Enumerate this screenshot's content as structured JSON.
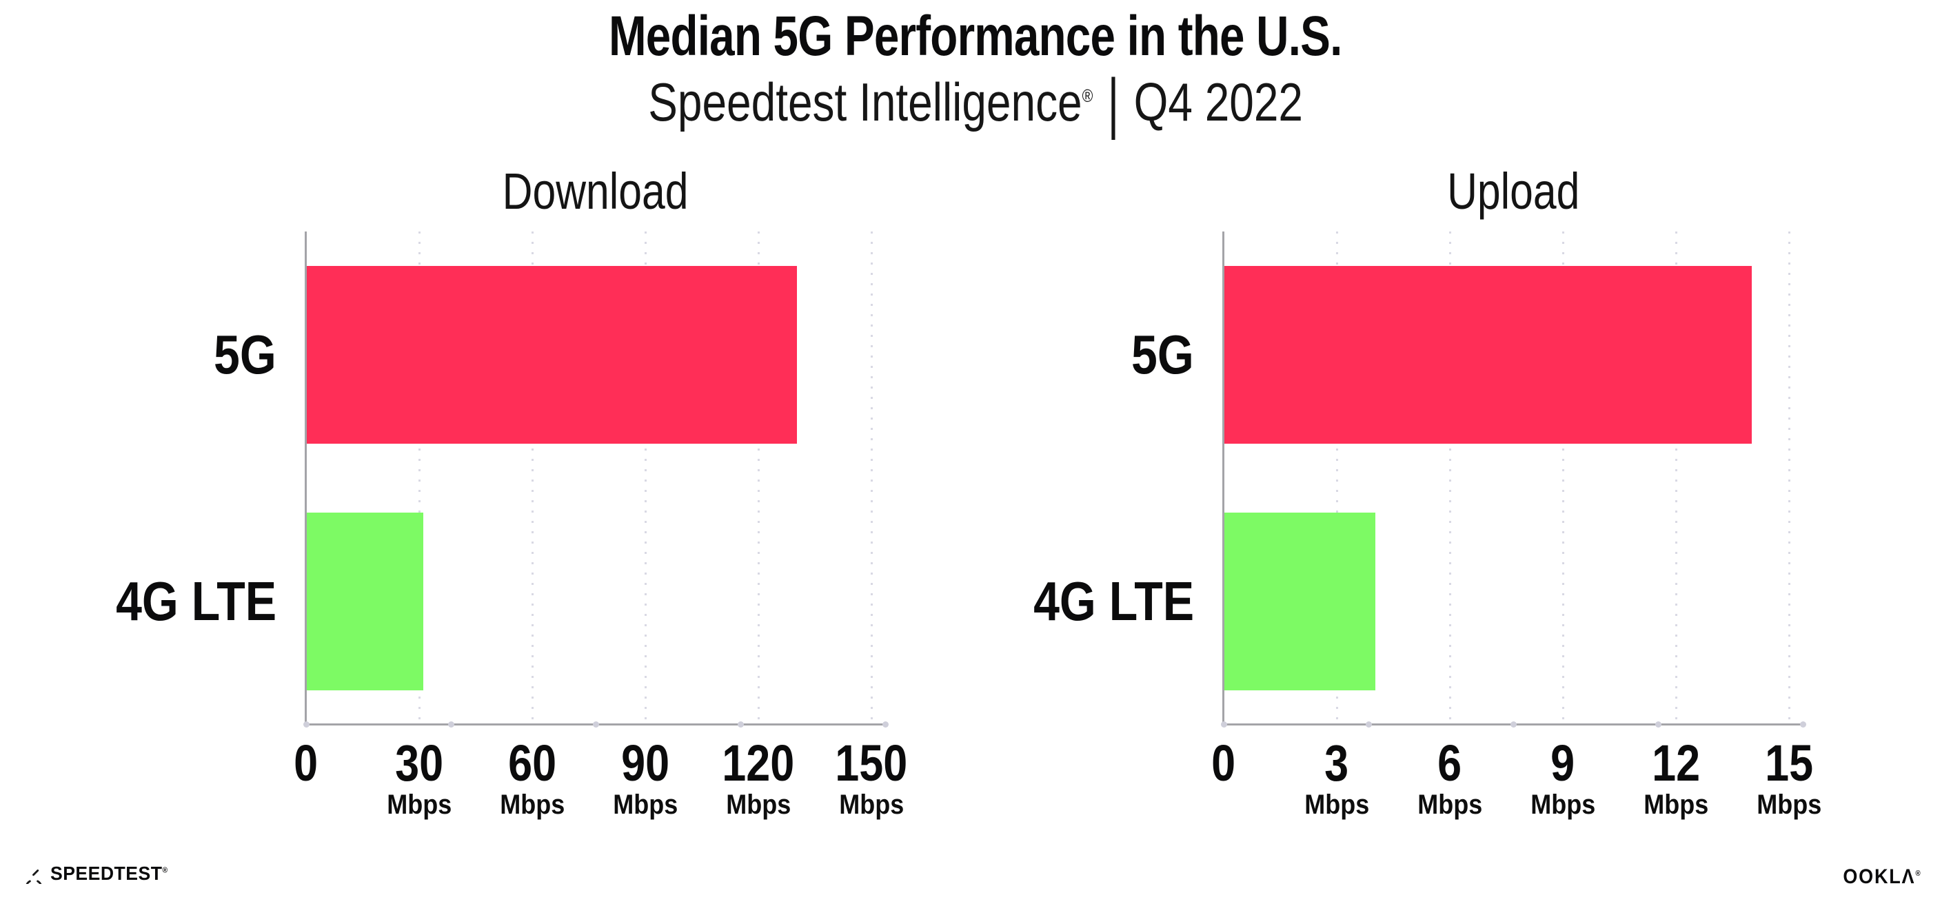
{
  "header": {
    "title": "Median 5G Performance in the U.S.",
    "subtitle_brand": "Speedtest Intelligence",
    "subtitle_reg": "®",
    "subtitle_sep": "|",
    "subtitle_period": "Q4 2022"
  },
  "chart_data": [
    {
      "type": "bar",
      "orientation": "horizontal",
      "title": "Download",
      "categories": [
        "5G",
        "4G LTE"
      ],
      "values": [
        130,
        31
      ],
      "unit": "Mbps",
      "xlabel": "",
      "ylabel": "",
      "xlim": [
        0,
        150
      ],
      "ticks": [
        0,
        30,
        60,
        90,
        120,
        150
      ],
      "grid": "dotted-vertical",
      "legend": "none",
      "bar_colors": [
        "#FF2E57",
        "#7DFA64"
      ]
    },
    {
      "type": "bar",
      "orientation": "horizontal",
      "title": "Upload",
      "categories": [
        "5G",
        "4G LTE"
      ],
      "values": [
        14,
        4
      ],
      "unit": "Mbps",
      "xlabel": "",
      "ylabel": "",
      "xlim": [
        0,
        15
      ],
      "ticks": [
        0,
        3,
        6,
        9,
        12,
        15
      ],
      "grid": "dotted-vertical",
      "legend": "none",
      "bar_colors": [
        "#FF2E57",
        "#7DFA64"
      ]
    }
  ],
  "footer": {
    "speedtest_label": "SPEEDTEST",
    "speedtest_mark": "®",
    "ookla_label": "OOKLΛ",
    "ookla_mark": "®"
  },
  "colors": {
    "bar_5g": "#FF2E57",
    "bar_4g_lte": "#7DFA64",
    "axis": "#a4a4a8",
    "grid_dots": "#d9d9e4",
    "text": "#0b0b0c",
    "background": "#ffffff"
  }
}
